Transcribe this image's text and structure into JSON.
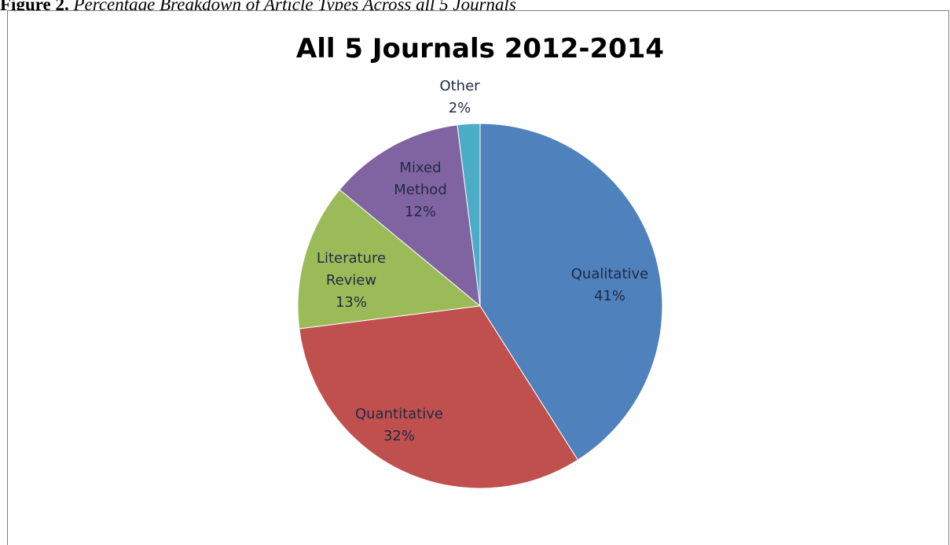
{
  "figure_caption": {
    "lead": "Figure 2.",
    "text": "Percentage Breakdown of Article Types Across all 5 Journals"
  },
  "chart_data": {
    "type": "pie",
    "title": "All 5 Journals 2012-2014",
    "slices": [
      {
        "label": "Qualitative",
        "value": 41,
        "display": "41%",
        "color": "#4f81bd"
      },
      {
        "label": "Quantitative",
        "value": 32,
        "display": "32%",
        "color": "#c0504d"
      },
      {
        "label": "Literature Review",
        "value": 13,
        "display": "13%",
        "color": "#9bbb59"
      },
      {
        "label": "Mixed Method",
        "value": 12,
        "display": "12%",
        "color": "#8064a2"
      },
      {
        "label": "Other",
        "value": 2,
        "display": "2%",
        "color": "#4bacc6"
      }
    ],
    "start_angle_deg": 0,
    "direction": "clockwise",
    "legend": "none",
    "data_labels": "category name and percent"
  }
}
